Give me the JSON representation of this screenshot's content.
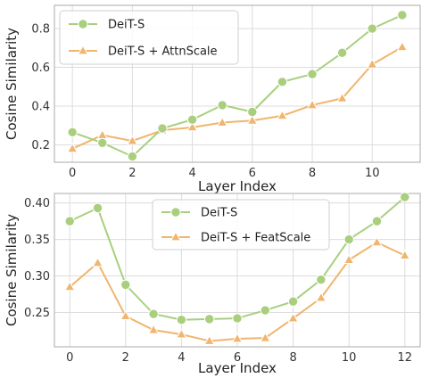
{
  "chart_data": [
    {
      "type": "line",
      "xlabel": "Layer Index",
      "ylabel": "Cosine Similarity",
      "xlim": [
        -0.6,
        11.6
      ],
      "ylim": [
        0.11,
        0.92
      ],
      "xticks": [
        0,
        2,
        4,
        6,
        8,
        10
      ],
      "yticks": [
        0.2,
        0.4,
        0.6,
        0.8
      ],
      "ytick_labels": [
        "0.2",
        "0.4",
        "0.6",
        "0.8"
      ],
      "grid": true,
      "legend_position": "top-left",
      "x": [
        0,
        1,
        2,
        3,
        4,
        5,
        6,
        7,
        8,
        9,
        10,
        11
      ],
      "series": [
        {
          "name": "DeiT-S",
          "marker": "circle",
          "color": "#a9cf7e",
          "values": [
            0.265,
            0.21,
            0.14,
            0.285,
            0.33,
            0.405,
            0.37,
            0.525,
            0.565,
            0.675,
            0.8,
            0.87
          ]
        },
        {
          "name": "DeiT-S + AttnScale",
          "marker": "triangle",
          "color": "#f0b56e",
          "values": [
            0.18,
            0.25,
            0.22,
            0.275,
            0.29,
            0.315,
            0.325,
            0.35,
            0.405,
            0.44,
            0.615,
            0.705
          ]
        }
      ]
    },
    {
      "type": "line",
      "xlabel": "Layer Index",
      "ylabel": "Cosine Similarity",
      "xlim": [
        -0.55,
        12.55
      ],
      "ylim": [
        0.203,
        0.413
      ],
      "xticks": [
        0,
        2,
        4,
        6,
        8,
        10,
        12
      ],
      "yticks": [
        0.25,
        0.3,
        0.35,
        0.4
      ],
      "ytick_labels": [
        "0.25",
        "0.30",
        "0.35",
        "0.40"
      ],
      "grid": true,
      "legend_position": "top-center",
      "x": [
        0,
        1,
        2,
        3,
        4,
        5,
        6,
        7,
        8,
        9,
        10,
        11,
        12
      ],
      "series": [
        {
          "name": "DeiT-S",
          "marker": "circle",
          "color": "#a9cf7e",
          "values": [
            0.375,
            0.393,
            0.288,
            0.248,
            0.24,
            0.241,
            0.242,
            0.253,
            0.265,
            0.295,
            0.35,
            0.375,
            0.408
          ]
        },
        {
          "name": "DeiT-S + FeatScale",
          "marker": "triangle",
          "color": "#f0b56e",
          "values": [
            0.285,
            0.318,
            0.245,
            0.226,
            0.22,
            0.211,
            0.214,
            0.215,
            0.242,
            0.27,
            0.322,
            0.346,
            0.328
          ]
        }
      ]
    }
  ]
}
